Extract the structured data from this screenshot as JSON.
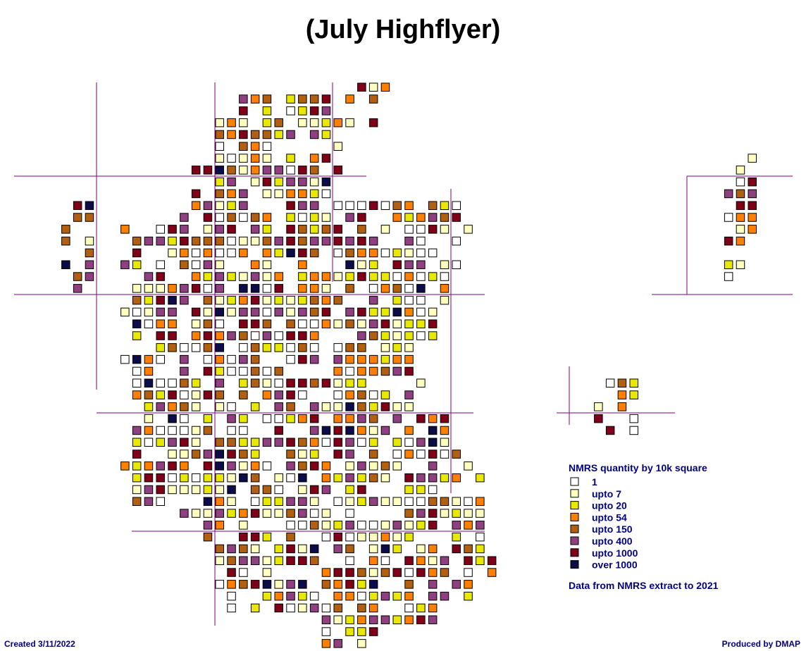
{
  "title": "(July Highflyer)",
  "legend": {
    "title": "NMRS quantity by 10k square",
    "items": [
      {
        "label": "1",
        "color": "#ffffff"
      },
      {
        "label": "upto 7",
        "color": "#ffffc0"
      },
      {
        "label": "upto 20",
        "color": "#e8e800"
      },
      {
        "label": "upto 54",
        "color": "#ff8000"
      },
      {
        "label": "upto 150",
        "color": "#b06010"
      },
      {
        "label": "upto 400",
        "color": "#904080"
      },
      {
        "label": "upto 1000",
        "color": "#800018"
      },
      {
        "label": "over 1000",
        "color": "#0c0c48"
      }
    ]
  },
  "note": "Data from NMRS extract to 2021",
  "footer": {
    "created": "Created 3/11/2022",
    "produced": "Produced by DMAP"
  }
}
